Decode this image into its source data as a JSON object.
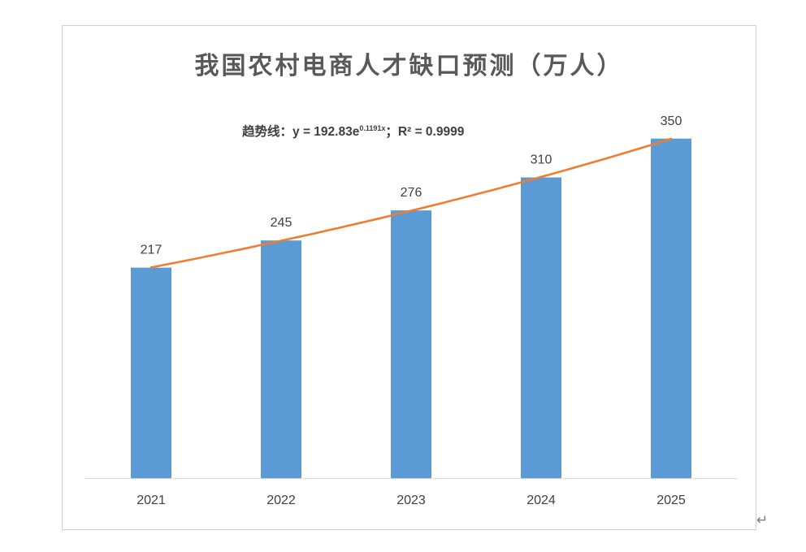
{
  "document": {
    "paragraph_mark_icon": "return-arrow-icon"
  },
  "colors": {
    "bar": "#5B9BD5",
    "trendline": "#ED7D31",
    "title": "#595959",
    "text": "#404040",
    "axis": "#D9D9D9",
    "frame_border": "#CFCFCF"
  },
  "chart_data": {
    "type": "bar",
    "title": "我国农村电商人才缺口预测（万人）",
    "xlabel": "",
    "ylabel": "",
    "categories": [
      "2021",
      "2022",
      "2023",
      "2024",
      "2025"
    ],
    "values": [
      217,
      245,
      276,
      310,
      350
    ],
    "data_labels": true,
    "y_axis_visible": false,
    "grid": false,
    "legend": "none",
    "trendline": {
      "type": "exponential",
      "a": 192.83,
      "b": 0.1191,
      "label": "趋势线：",
      "equation_text": "y = 192.83e",
      "exponent_text": "0.1191x",
      "separator": "；",
      "r_squared_text": "R² = 0.9999"
    }
  }
}
